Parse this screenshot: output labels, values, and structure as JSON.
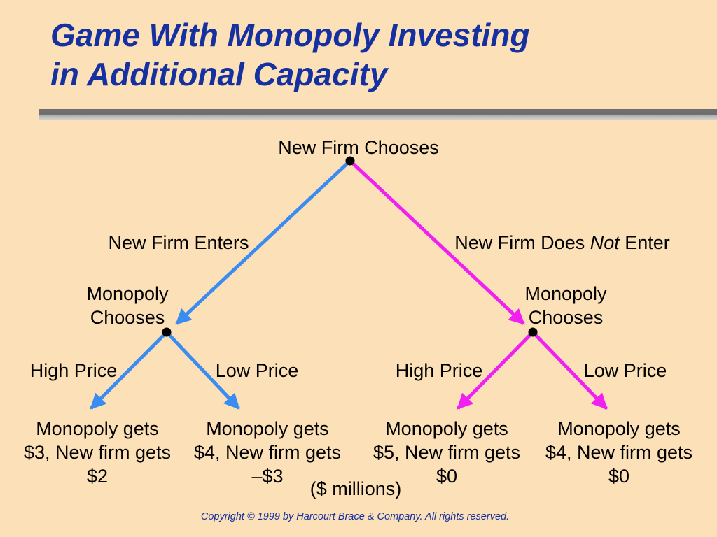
{
  "title": {
    "line1": "Game With Monopoly Investing",
    "line2": "in Additional Capacity"
  },
  "root": {
    "label": "New Firm Chooses"
  },
  "branches": {
    "enter": {
      "label": "New Firm Enters",
      "color": "#3A8CF0"
    },
    "not_enter": {
      "label_prefix": "New Firm Does ",
      "label_emph": "Not",
      "label_suffix": " Enter",
      "color": "#F020F0"
    }
  },
  "monopoly_nodes": {
    "left": {
      "line1": "Monopoly",
      "line2": "Chooses"
    },
    "right": {
      "line1": "Monopoly",
      "line2": "Chooses"
    }
  },
  "actions": {
    "left_high": "High Price",
    "left_low": "Low Price",
    "right_high": "High Price",
    "right_low": "Low Price"
  },
  "outcomes": [
    {
      "line1": "Monopoly gets",
      "line2": "$3, New firm gets",
      "line3": "$2"
    },
    {
      "line1": "Monopoly gets",
      "line2": "$4, New firm gets",
      "line3": "–$3"
    },
    {
      "line1": "Monopoly gets",
      "line2": "$5, New firm gets",
      "line3": "$0"
    },
    {
      "line1": "Monopoly gets",
      "line2": "$4, New firm gets",
      "line3": "$0"
    }
  ],
  "units_note": "($ millions)",
  "copyright": "Copyright © 1999 by Harcourt Brace & Company. All rights reserved."
}
